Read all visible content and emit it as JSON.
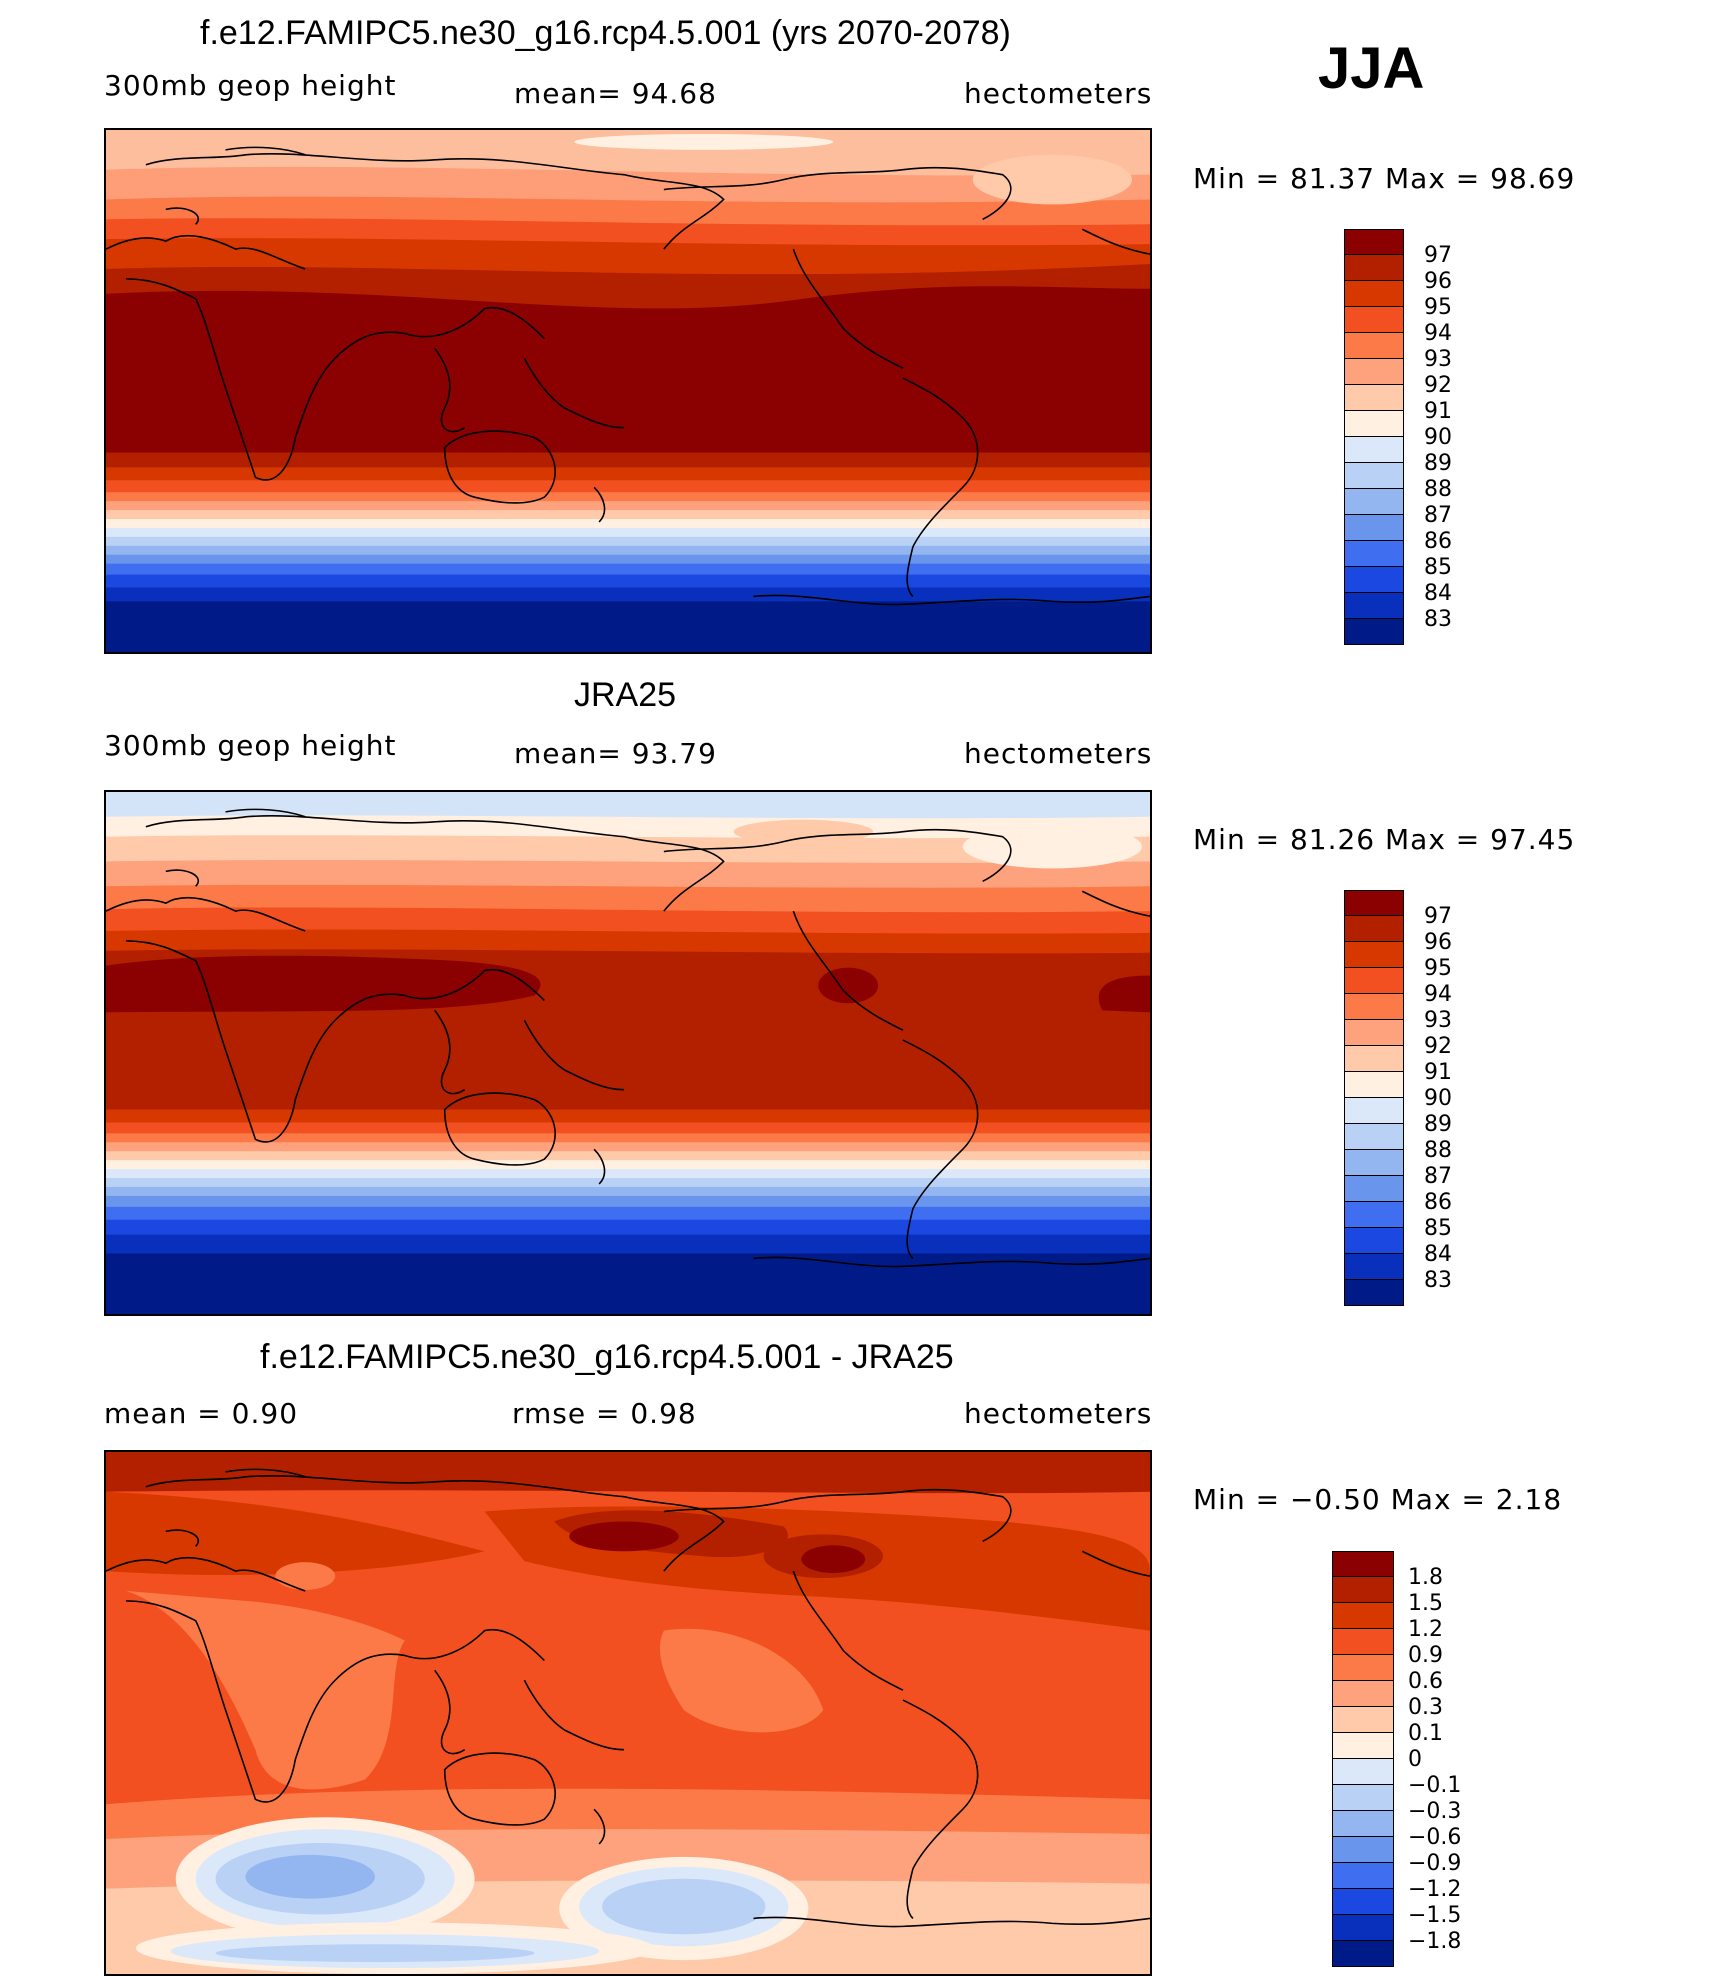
{
  "season": "JJA",
  "panels": [
    {
      "title": "f.e12.FAMIPC5.ne30_g16.rcp4.5.001 (yrs 2070-2078)",
      "left_label": "300mb  geop  height",
      "center_label": "mean=   94.68",
      "right_label": "hectometers",
      "minmax": "Min  =   81.37  Max  =   98.69",
      "legend_ticks": [
        "97",
        "96",
        "95",
        "94",
        "93",
        "92",
        "91",
        "90",
        "89",
        "88",
        "87",
        "86",
        "85",
        "84",
        "83"
      ],
      "legend_colors": [
        "#8b0000",
        "#b22000",
        "#d73800",
        "#f25020",
        "#fb7a48",
        "#fda27c",
        "#fecaaa",
        "#fff0e2",
        "#dae8fa",
        "#b8d1f5",
        "#93b5f0",
        "#6a95ec",
        "#3f6ff0",
        "#1a48e0",
        "#0830bc",
        "#001a88"
      ]
    },
    {
      "title": "JRA25",
      "left_label": "300mb  geop  height",
      "center_label": "mean=   93.79",
      "right_label": "hectometers",
      "minmax": "Min  =   81.26  Max  =   97.45",
      "legend_ticks": [
        "97",
        "96",
        "95",
        "94",
        "93",
        "92",
        "91",
        "90",
        "89",
        "88",
        "87",
        "86",
        "85",
        "84",
        "83"
      ],
      "legend_colors": [
        "#8b0000",
        "#b22000",
        "#d73800",
        "#f25020",
        "#fb7a48",
        "#fda27c",
        "#fecaaa",
        "#fff0e2",
        "#dae8fa",
        "#b8d1f5",
        "#93b5f0",
        "#6a95ec",
        "#3f6ff0",
        "#1a48e0",
        "#0830bc",
        "#001a88"
      ]
    },
    {
      "title": "f.e12.FAMIPC5.ne30_g16.rcp4.5.001 - JRA25",
      "left_label": "mean  =     0.90",
      "center_label": "rmse  =     0.98",
      "right_label": "hectometers",
      "minmax": "Min  =   −0.50  Max  =     2.18",
      "legend_ticks": [
        "1.8",
        "1.5",
        "1.2",
        "0.9",
        "0.6",
        "0.3",
        "0.1",
        "0",
        "−0.1",
        "−0.3",
        "−0.6",
        "−0.9",
        "−1.2",
        "−1.5",
        "−1.8"
      ],
      "legend_colors": [
        "#8b0000",
        "#b22000",
        "#d73800",
        "#f25020",
        "#fb7a48",
        "#fda27c",
        "#fecaaa",
        "#fff0e2",
        "#dae8fa",
        "#b8d1f5",
        "#93b5f0",
        "#6a95ec",
        "#3f6ff0",
        "#1a48e0",
        "#0830bc",
        "#001a88"
      ]
    }
  ]
}
